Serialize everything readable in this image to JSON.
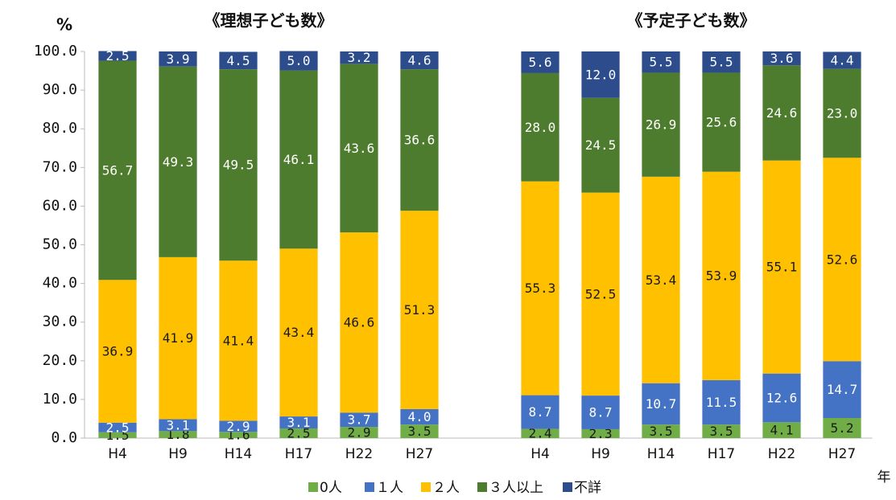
{
  "chart_data": {
    "type": "stacked_bar",
    "group_titles": [
      "《理想子ども数》",
      "《予定子ども数》"
    ],
    "y_label": "%",
    "x_label": "年",
    "categories": [
      "H4",
      "H9",
      "H14",
      "H17",
      "H22",
      "H27",
      null,
      "H4",
      "H9",
      "H14",
      "H17",
      "H22",
      "H27"
    ],
    "series": [
      {
        "name": "0人",
        "color": "#70ad47",
        "label_color": "#1a1a1a",
        "values": [
          1.5,
          1.8,
          1.6,
          2.5,
          2.9,
          3.5,
          null,
          2.4,
          2.3,
          3.5,
          3.5,
          4.1,
          5.2
        ],
        "value_labels": [
          "1.5",
          "1.8",
          "1.6",
          "2.5",
          "2.9",
          "3.5",
          null,
          "2.4",
          "2.3",
          "3.5",
          "3.5",
          "4.1",
          "5.2"
        ]
      },
      {
        "name": "１人",
        "color": "#4472c4",
        "label_color": "#ffffff",
        "values": [
          2.5,
          3.1,
          2.9,
          3.1,
          3.7,
          4.0,
          null,
          8.7,
          8.7,
          10.7,
          11.5,
          12.6,
          14.7
        ],
        "value_labels": [
          "2.5",
          "3.1",
          "2.9",
          "3.1",
          "3.7",
          "4.0",
          null,
          "8.7",
          "8.7",
          "10.7",
          "11.5",
          "12.6",
          "14.7"
        ]
      },
      {
        "name": "２人",
        "color": "#ffc000",
        "label_color": "#1a1a1a",
        "values": [
          36.9,
          41.9,
          41.4,
          43.4,
          46.6,
          51.3,
          null,
          55.3,
          52.5,
          53.4,
          53.9,
          55.1,
          52.6
        ],
        "value_labels": [
          "36.9",
          "41.9",
          "41.4",
          "43.4",
          "46.6",
          "51.3",
          null,
          "55.3",
          "52.5",
          "53.4",
          "53.9",
          "55.1",
          "52.6"
        ]
      },
      {
        "name": "３人以上",
        "color": "#4e7c2e",
        "label_color": "#ffffff",
        "values": [
          56.7,
          49.3,
          49.5,
          46.1,
          43.6,
          36.6,
          null,
          28.0,
          24.5,
          26.9,
          25.6,
          24.6,
          23.0
        ],
        "value_labels": [
          "56.7",
          "49.3",
          "49.5",
          "46.1",
          "43.6",
          "36.6",
          null,
          "28.0",
          "24.5",
          "26.9",
          "25.6",
          "24.6",
          "23.0"
        ]
      },
      {
        "name": "不詳",
        "color": "#2c4c8c",
        "label_color": "#ffffff",
        "values": [
          2.5,
          3.9,
          4.5,
          5.0,
          3.2,
          4.6,
          null,
          5.6,
          12.0,
          5.5,
          5.5,
          3.6,
          4.4
        ],
        "value_labels": [
          "2.5",
          "3.9",
          "4.5",
          "5.0",
          "3.2",
          "4.6",
          null,
          "5.6",
          "12.0",
          "5.5",
          "5.5",
          "3.6",
          "4.4"
        ]
      }
    ],
    "ylim": [
      0,
      100
    ],
    "yticks": [
      {
        "value": 0,
        "label": "0.0"
      },
      {
        "value": 10,
        "label": "10.0"
      },
      {
        "value": 20,
        "label": "20.0"
      },
      {
        "value": 30,
        "label": "30.0"
      },
      {
        "value": 40,
        "label": "40.0"
      },
      {
        "value": 50,
        "label": "50.0"
      },
      {
        "value": 60,
        "label": "60.0"
      },
      {
        "value": 70,
        "label": "70.0"
      },
      {
        "value": 80,
        "label": "80.0"
      },
      {
        "value": 90,
        "label": "90.0"
      },
      {
        "value": 100,
        "label": "100.0"
      }
    ],
    "grid": false,
    "legend": "bottom"
  }
}
